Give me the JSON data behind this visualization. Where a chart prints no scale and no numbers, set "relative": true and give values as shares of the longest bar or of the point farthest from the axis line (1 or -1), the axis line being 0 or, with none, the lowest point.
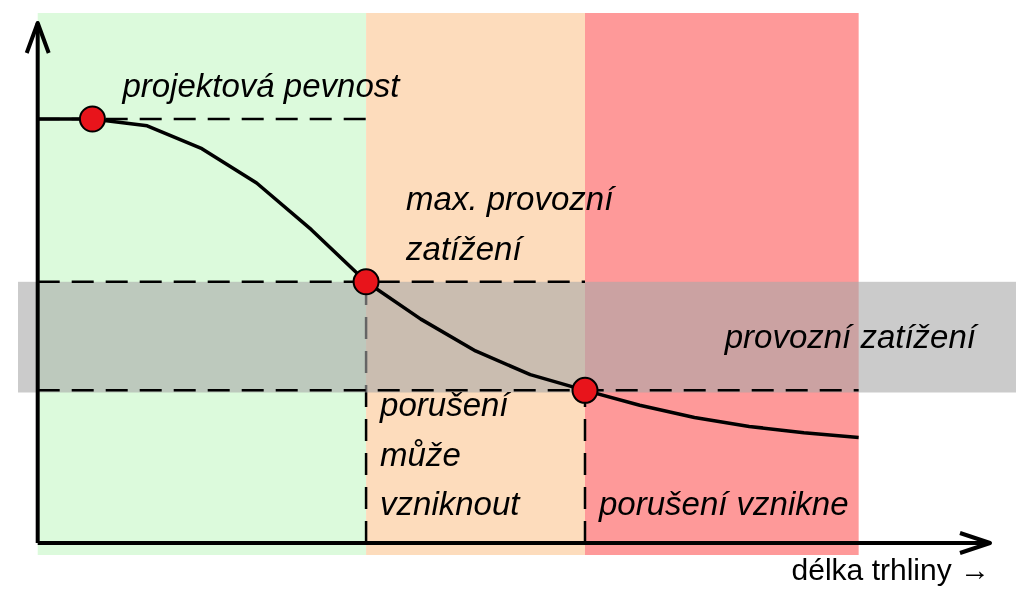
{
  "chart_data": {
    "type": "line",
    "relative": true,
    "xlabel": "délka trhliny →",
    "categories": [
      null,
      null,
      null,
      null,
      null,
      null,
      null,
      null,
      null,
      null,
      null,
      null,
      null,
      null,
      null,
      null
    ],
    "series": [
      {
        "color": "#000000",
        "line_style": "solid",
        "values": [
          1,
          1,
          0.984,
          0.93,
          0.849,
          0.739,
          0.616,
          0.528,
          0.453,
          0.397,
          0.36,
          0.325,
          0.296,
          0.275,
          0.26,
          0.249
        ]
      }
    ],
    "ref_lines": [
      {
        "axis": "y",
        "value": 1,
        "label": "projektová pevnost",
        "color": "#000000",
        "line_style": "dashed"
      },
      {
        "axis": "y",
        "value": 0.616,
        "label": "max. provozní\nzatížení",
        "color": "#000000",
        "line_style": "dashed"
      },
      {
        "axis": "y",
        "value": 0.36,
        "color": "#000000",
        "line_style": "dashed"
      }
    ],
    "bands": [
      {
        "axis": "y",
        "from": 0.355,
        "to": 0.616,
        "color": "#a8a8a8",
        "label": "provozní zatížení"
      }
    ],
    "annotations": [
      "porušení\nmůže\nvzniknout",
      "porušení vznikne"
    ]
  }
}
